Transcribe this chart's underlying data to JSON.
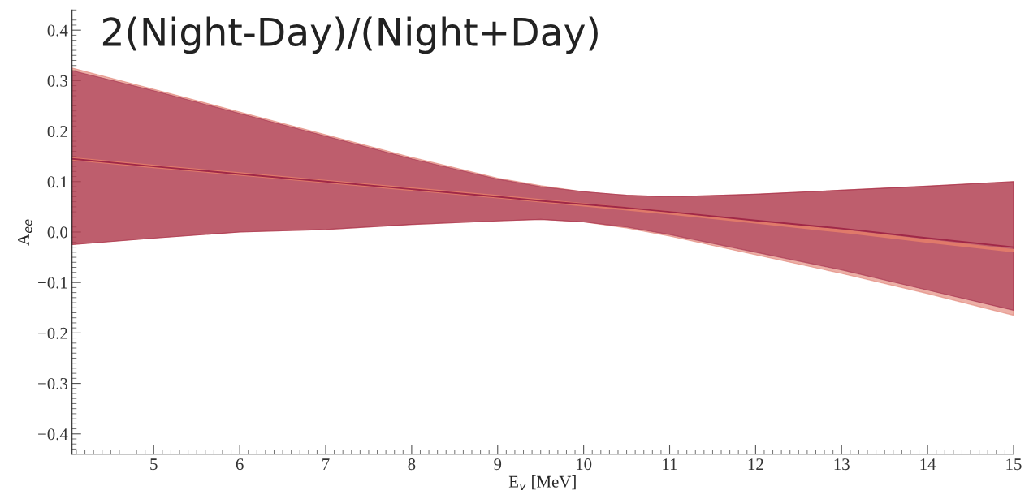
{
  "chart_data": {
    "type": "line",
    "title": "2(Night-Day)/(Night+Day)",
    "xlabel": "E$_{v}$ [MeV]",
    "ylabel": "A$_{ee}$",
    "x": [
      4.05,
      5,
      6,
      7,
      8,
      9,
      9.5,
      10,
      10.5,
      11,
      12,
      13,
      14,
      15
    ],
    "series": [
      {
        "color": "#e07a6a",
        "values": [
          0.145,
          0.13,
          0.115,
          0.1,
          0.085,
          0.07,
          0.062,
          0.054,
          0.046,
          0.038,
          0.02,
          0.002,
          -0.018,
          -0.037
        ],
        "lower": [
          -0.025,
          -0.012,
          0.0,
          0.005,
          0.015,
          0.022,
          0.025,
          0.02,
          0.008,
          -0.008,
          -0.045,
          -0.082,
          -0.122,
          -0.165
        ],
        "upper": [
          0.325,
          0.283,
          0.238,
          0.193,
          0.148,
          0.107,
          0.092,
          0.08,
          0.073,
          0.07,
          0.075,
          0.083,
          0.091,
          0.1
        ]
      },
      {
        "color": "#a02848",
        "values": [
          0.145,
          0.13,
          0.115,
          0.1,
          0.085,
          0.07,
          0.062,
          0.055,
          0.048,
          0.04,
          0.023,
          0.007,
          -0.012,
          -0.03
        ],
        "lower": [
          -0.025,
          -0.012,
          0.0,
          0.005,
          0.015,
          0.022,
          0.025,
          0.02,
          0.01,
          -0.005,
          -0.04,
          -0.075,
          -0.115,
          -0.155
        ],
        "upper": [
          0.32,
          0.28,
          0.235,
          0.19,
          0.145,
          0.105,
          0.09,
          0.08,
          0.073,
          0.07,
          0.075,
          0.083,
          0.091,
          0.1
        ]
      }
    ],
    "xlim": [
      4.05,
      15
    ],
    "xticks": [
      5,
      6,
      7,
      8,
      9,
      10,
      11,
      12,
      13,
      14,
      15
    ],
    "ylim": [
      -0.44,
      0.44
    ],
    "yticks": [
      {
        "value": -0.4,
        "label": "−0.4"
      },
      {
        "value": -0.3,
        "label": "−0.3"
      },
      {
        "value": -0.2,
        "label": "−0.2"
      },
      {
        "value": -0.1,
        "label": "−0.1"
      },
      {
        "value": 0.0,
        "label": "0.0"
      },
      0.1,
      0.2,
      0.3,
      0.4
    ],
    "grid": false,
    "legend": false
  }
}
